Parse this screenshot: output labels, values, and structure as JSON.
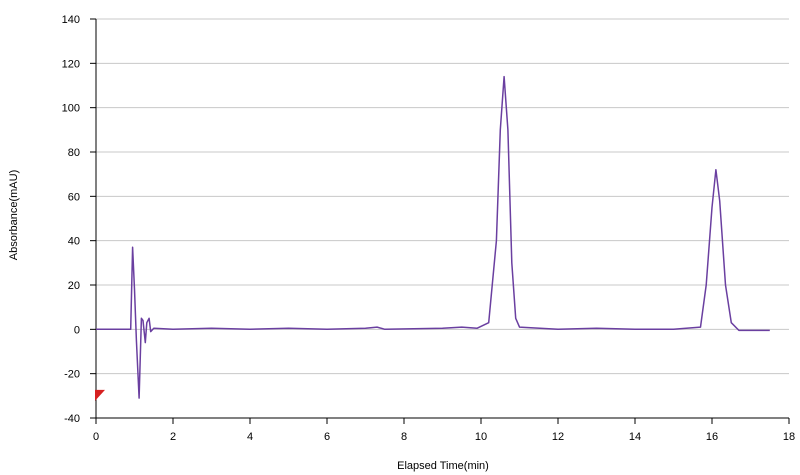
{
  "chart_data": {
    "type": "line",
    "title": "",
    "xlabel": "Elapsed Time(min)",
    "ylabel": "Absorbance(mAU)",
    "xlim": [
      0,
      18
    ],
    "ylim": [
      -40,
      140
    ],
    "x_ticks": [
      0,
      2,
      4,
      6,
      8,
      10,
      12,
      14,
      16,
      18
    ],
    "y_ticks": [
      -40,
      -20,
      0,
      20,
      40,
      60,
      80,
      100,
      120,
      140
    ],
    "grid": "horizontal",
    "series": [
      {
        "color": "#6a3fa0",
        "points": [
          [
            0.0,
            0
          ],
          [
            0.9,
            0
          ],
          [
            0.95,
            37
          ],
          [
            1.0,
            18
          ],
          [
            1.05,
            -5
          ],
          [
            1.12,
            -31
          ],
          [
            1.18,
            5
          ],
          [
            1.22,
            4
          ],
          [
            1.28,
            -6
          ],
          [
            1.32,
            3
          ],
          [
            1.38,
            5
          ],
          [
            1.42,
            -1
          ],
          [
            1.5,
            0.5
          ],
          [
            2.0,
            0
          ],
          [
            3.0,
            0.5
          ],
          [
            4.0,
            0
          ],
          [
            5.0,
            0.5
          ],
          [
            6.0,
            0
          ],
          [
            7.0,
            0.5
          ],
          [
            7.3,
            1
          ],
          [
            7.5,
            0
          ],
          [
            9.0,
            0.5
          ],
          [
            9.5,
            1
          ],
          [
            9.9,
            0.5
          ],
          [
            10.2,
            3
          ],
          [
            10.4,
            40
          ],
          [
            10.5,
            90
          ],
          [
            10.6,
            114
          ],
          [
            10.7,
            90
          ],
          [
            10.8,
            30
          ],
          [
            10.9,
            5
          ],
          [
            11.0,
            1
          ],
          [
            12.0,
            0
          ],
          [
            13.0,
            0.5
          ],
          [
            14.0,
            0
          ],
          [
            15.0,
            0
          ],
          [
            15.7,
            1
          ],
          [
            15.85,
            20
          ],
          [
            16.0,
            55
          ],
          [
            16.1,
            72
          ],
          [
            16.2,
            58
          ],
          [
            16.35,
            20
          ],
          [
            16.5,
            3
          ],
          [
            16.7,
            -0.5
          ],
          [
            17.5,
            -0.5
          ]
        ]
      }
    ],
    "marker": {
      "x": 0,
      "y": -30,
      "color": "#d62020"
    }
  }
}
